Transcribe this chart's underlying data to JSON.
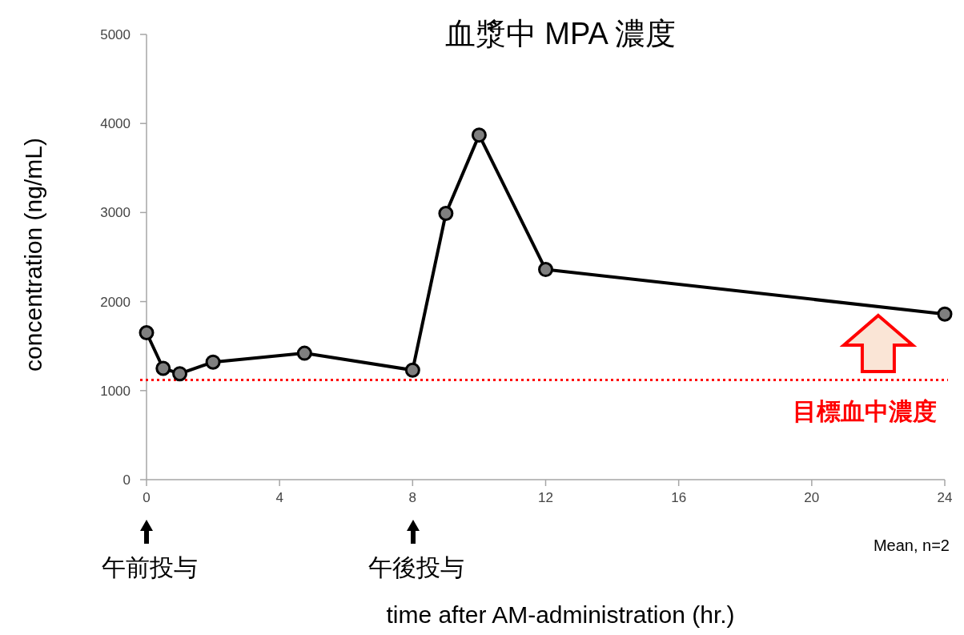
{
  "chart_data": {
    "type": "line",
    "title": "血漿中 MPA 濃度",
    "xlabel": "time after AM-administration (hr.)",
    "ylabel": "concentration (ng/mL)",
    "x": [
      0,
      0.5,
      1,
      2,
      4.75,
      8,
      9,
      10,
      12,
      24
    ],
    "series": [
      {
        "color": "#000000",
        "values": [
          1650,
          1250,
          1190,
          1320,
          1420,
          1230,
          2990,
          3870,
          2360,
          1860
        ]
      }
    ],
    "xlim": [
      0,
      24
    ],
    "xticks": [
      0,
      4,
      8,
      12,
      16,
      20,
      24
    ],
    "ylim": [
      0,
      5000
    ],
    "yticks": [
      0,
      1000,
      2000,
      3000,
      4000,
      5000
    ],
    "grid": false,
    "marker": "circle",
    "line_style": "solid",
    "ref_lines": [
      {
        "axis": "y",
        "value": 1120,
        "label": "目標血中濃度",
        "color": "#ff0000",
        "line_style": "dotted"
      }
    ],
    "annotations": [
      "午前投与",
      "午後投与",
      "Mean, n=2"
    ]
  }
}
